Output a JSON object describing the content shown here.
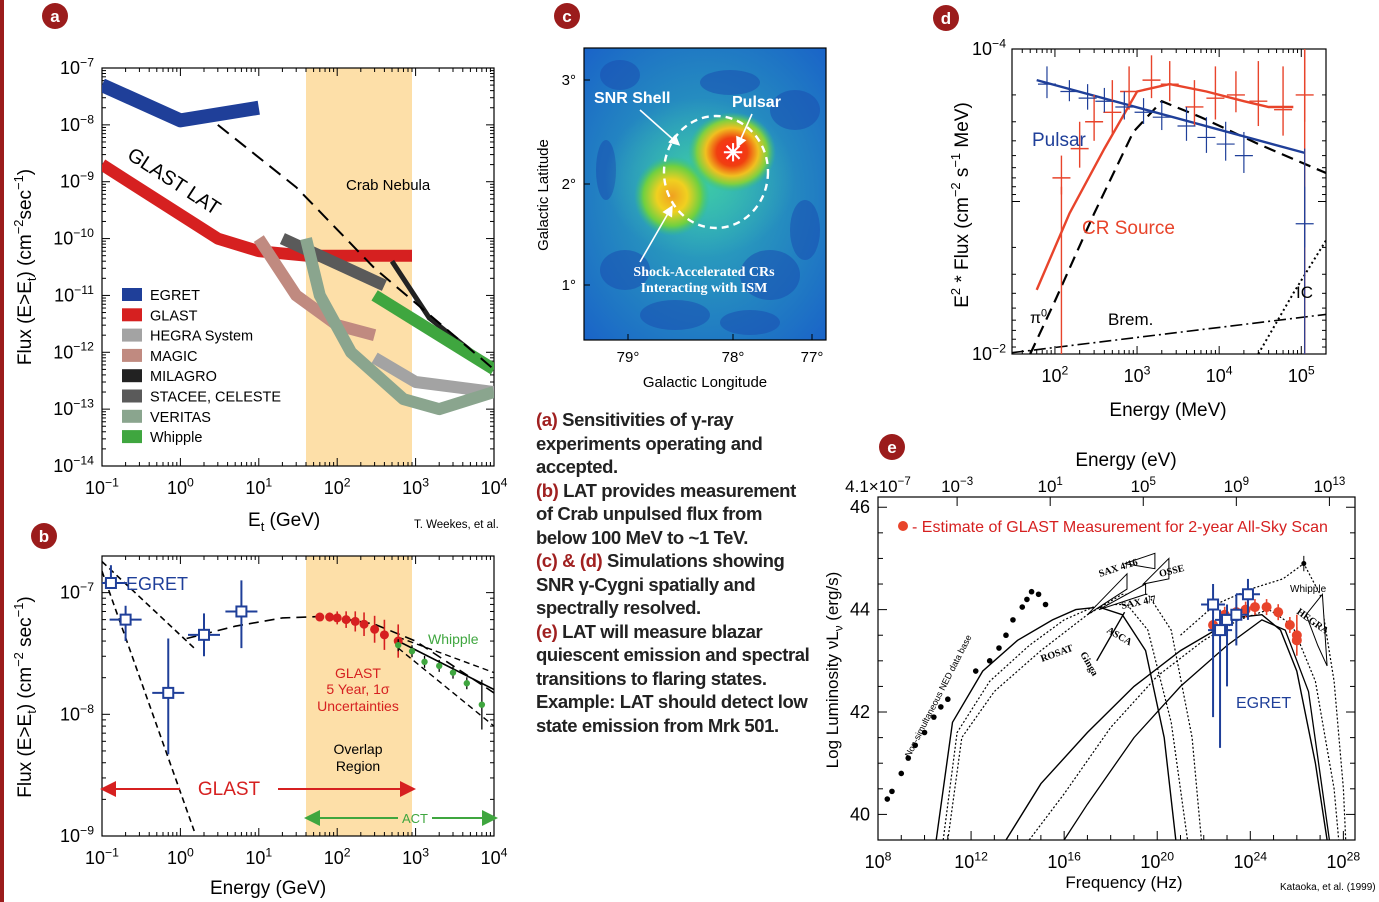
{
  "caption": [
    {
      "label": "(a)",
      "text": " Sensitivities of γ-ray experiments operating and accepted."
    },
    {
      "label": "(b)",
      "text": " LAT provides measurement of Crab unpulsed flux from below 100 MeV to ~1 TeV."
    },
    {
      "label": "(c) & (d)",
      "text": " Simulations showing SNR γ-Cygni spatially and spectrally resolved."
    },
    {
      "label": "(e)",
      "text": " LAT  will measure blazar quiescent emission and spectral transitions to flaring states."
    },
    {
      "label": "",
      "text": "Example: LAT should detect low state emission from Mrk 501."
    }
  ],
  "panel_labels": {
    "a": "a",
    "b": "b",
    "c": "c",
    "d": "d",
    "e": "e"
  },
  "colors": {
    "accent": "#9b1c1c",
    "egret": "#1f3f99",
    "glast": "#d62020",
    "overlap": "#fddfa8"
  },
  "chart_data": [
    {
      "panel": "a",
      "type": "line",
      "xlabel": "Et (GeV)",
      "ylabel": "Flux (E>Et) (cm−2sec−1)",
      "xlim": [
        0.1,
        10000
      ],
      "ylim": [
        1e-14,
        1e-07
      ],
      "xscale": "log",
      "yscale": "log",
      "x_ticks": [
        "10−1",
        "100",
        "101",
        "102",
        "103",
        "104"
      ],
      "y_ticks": [
        "10−14",
        "10−13",
        "10−12",
        "10−11",
        "10−10",
        "10−9",
        "10−8",
        "10−7"
      ],
      "overlap_band_x": [
        40,
        900
      ],
      "annotations": [
        "Crab Nebula",
        "GLAST LAT",
        "T. Weekes, et al."
      ],
      "legend_position": "bottom-left",
      "series": [
        {
          "name": "EGRET",
          "color": "#1f3f99",
          "x": [
            0.1,
            1,
            10
          ],
          "y": [
            5e-08,
            1.2e-08,
            2e-08
          ]
        },
        {
          "name": "GLAST",
          "color": "#d62020",
          "x": [
            0.1,
            3,
            10,
            40,
            900
          ],
          "y": [
            2e-09,
            1e-10,
            6e-11,
            5e-11,
            5e-11
          ]
        },
        {
          "name": "HEGRA System",
          "color": "#a3a3a3",
          "x": [
            300,
            1000,
            10000
          ],
          "y": [
            8e-13,
            3e-13,
            2e-13
          ]
        },
        {
          "name": "MAGIC",
          "color": "#c08a80",
          "x": [
            10,
            30,
            100,
            300
          ],
          "y": [
            1e-10,
            1e-11,
            3e-12,
            2e-12
          ]
        },
        {
          "name": "MILAGRO",
          "color": "#222222",
          "x": [
            500,
            1500,
            10000
          ],
          "y": [
            4e-11,
            4e-12,
            5e-13
          ]
        },
        {
          "name": "STACEE, CELESTE",
          "color": "#5a5a5a",
          "x": [
            20,
            400
          ],
          "y": [
            1e-10,
            1.5e-11
          ]
        },
        {
          "name": "VERITAS",
          "color": "#8aa58e",
          "x": [
            40,
            60,
            150,
            700,
            2000,
            10000
          ],
          "y": [
            1e-10,
            1e-11,
            1e-12,
            1.5e-13,
            1e-13,
            2e-13
          ]
        },
        {
          "name": "Whipple",
          "color": "#3fa63f",
          "x": [
            300,
            10000
          ],
          "y": [
            1e-11,
            5e-13
          ]
        },
        {
          "name": "Crab Nebula",
          "color": "#000000",
          "x": [
            3,
            30,
            300,
            10000
          ],
          "y": [
            1e-08,
            8e-10,
            3e-11,
            5e-13
          ]
        }
      ]
    },
    {
      "panel": "b",
      "type": "scatter",
      "xlabel": "Energy (GeV)",
      "ylabel": "Flux (E>Et) (cm−2 sec−1)",
      "xlim": [
        0.1,
        10000
      ],
      "ylim": [
        1e-09,
        2e-07
      ],
      "x_ticks": [
        "10−1",
        "100",
        "101",
        "102",
        "103",
        "104"
      ],
      "y_ticks": [
        "10−9",
        "10−8",
        "10−7"
      ],
      "labels": {
        "egret": "EGRET",
        "glast_band": "GLAST",
        "act": "ACT",
        "whipple": "Whipple",
        "overlap": "Overlap Region",
        "glast_note": "GLAST 5 Year, 1σ Uncertainties"
      },
      "series": [
        {
          "name": "EGRET",
          "color": "#1f3f99",
          "x": [
            0.13,
            0.2,
            0.7,
            2,
            6
          ],
          "y": [
            1.2e-07,
            6e-08,
            1.5e-08,
            4.5e-08,
            7e-08
          ]
        },
        {
          "name": "GLAST",
          "color": "#d62020",
          "x": [
            60,
            80,
            100,
            130,
            170,
            220,
            300,
            400,
            600
          ],
          "y": [
            6.3e-08,
            6.3e-08,
            6.2e-08,
            6e-08,
            5.8e-08,
            5.5e-08,
            5e-08,
            4.5e-08,
            4e-08
          ]
        },
        {
          "name": "Whipple",
          "color": "#3fa63f",
          "x": [
            600,
            900,
            1300,
            2000,
            3000,
            4500,
            7000
          ],
          "y": [
            3.7e-08,
            3.3e-08,
            2.7e-08,
            2.5e-08,
            2.2e-08,
            1.8e-08,
            1.2e-08
          ]
        }
      ]
    },
    {
      "panel": "c",
      "type": "heatmap",
      "xlabel": "Galactic Longitude",
      "ylabel": "Galactic Latitude",
      "x_ticks": [
        "79°",
        "78°",
        "77°"
      ],
      "y_ticks": [
        "1°",
        "2°",
        "3°"
      ],
      "annotations": [
        "SNR Shell",
        "Pulsar",
        "Shock-Accelerated CRs",
        "Interacting with ISM"
      ]
    },
    {
      "panel": "d",
      "type": "line",
      "xlabel": "Energy   (MeV)",
      "ylabel": "E2 * Flux (cm−2 s−1 MeV)",
      "xlim": [
        30,
        200000
      ],
      "ylim": [
        0.01,
        0.0001
      ],
      "x_ticks": [
        "102",
        "103",
        "104",
        "105"
      ],
      "y_ticks": [
        "10−2",
        "10−4"
      ],
      "labels": {
        "pulsar": "Pulsar",
        "cr": "CR Source",
        "pi0": "π0",
        "brem": "Brem.",
        "ic": "IC"
      },
      "series": [
        {
          "name": "Pulsar",
          "color": "#1f3f99"
        },
        {
          "name": "CR Source",
          "color": "#e8442b"
        },
        {
          "name": "π0",
          "color": "#000000"
        },
        {
          "name": "Brem.",
          "color": "#000000"
        },
        {
          "name": "IC",
          "color": "#000000"
        }
      ]
    },
    {
      "panel": "e",
      "type": "line",
      "xlabel": "Frequency  (Hz)",
      "ylabel": "Log Luminosity νLν  (erg/s)",
      "top_axis_label": "Energy  (eV)",
      "top_ticks": [
        "4.1×10−7",
        "10−3",
        "101",
        "105",
        "109",
        "1013"
      ],
      "x_ticks": [
        "108",
        "1012",
        "1016",
        "1020",
        "1024",
        "1028"
      ],
      "y_ticks": [
        "40",
        "42",
        "44",
        "46"
      ],
      "legend": "- Estimate of GLAST Measurement for 2-year All-Sky Scan",
      "instrument_labels": [
        "SAX 4/16",
        "OSSE",
        "SAX 4/7",
        "ROSAT",
        "ASCA",
        "Ginga",
        "Whipple",
        "HEGRA",
        "Non-simultaneous NED data base"
      ],
      "labels": {
        "egret": "EGRET",
        "credit": "Kataoka, et al. (1999)"
      },
      "series": [
        {
          "name": "GLAST",
          "color": "#e8442b"
        },
        {
          "name": "EGRET",
          "color": "#1f3f99"
        }
      ]
    }
  ]
}
